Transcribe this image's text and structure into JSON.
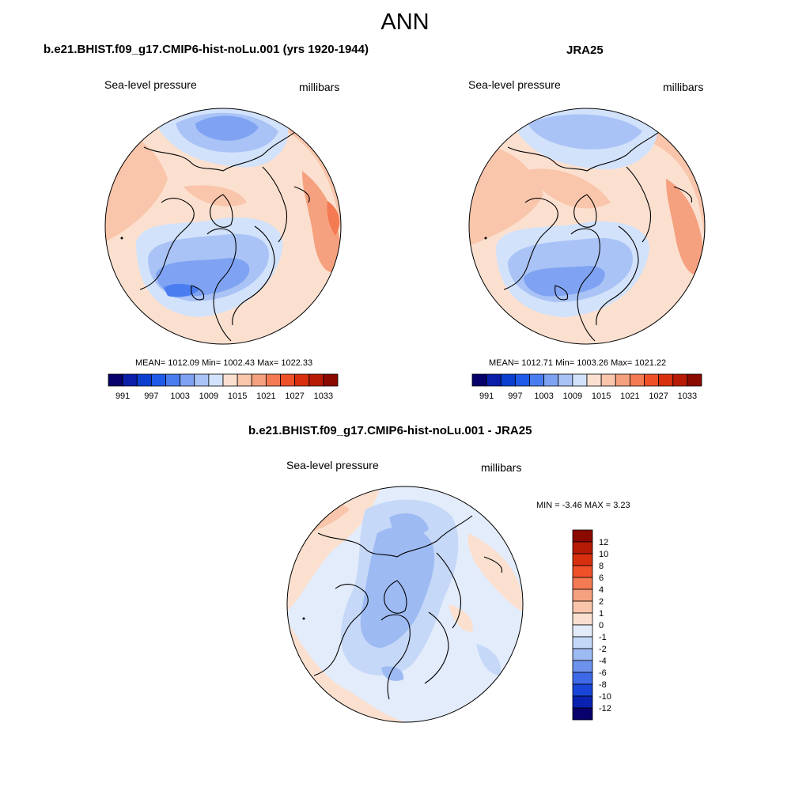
{
  "page": {
    "title": "ANN"
  },
  "panels": {
    "model": {
      "title": "b.e21.BHIST.f09_g17.CMIP6-hist-noLu.001 (yrs 1920-1944)",
      "variable": "Sea-level pressure",
      "units": "millibars",
      "stats": "MEAN= 1012.09  Min= 1002.43  Max= 1022.33",
      "mean": 1012.09,
      "min": 1002.43,
      "max": 1022.33
    },
    "obs": {
      "title": "JRA25",
      "variable": "Sea-level pressure",
      "units": "millibars",
      "stats": "MEAN= 1012.71  Min= 1003.26  Max= 1021.22",
      "mean": 1012.71,
      "min": 1003.26,
      "max": 1021.22
    },
    "diff": {
      "title": "b.e21.BHIST.f09_g17.CMIP6-hist-noLu.001 - JRA25",
      "variable": "Sea-level pressure",
      "units": "millibars",
      "stats": "MIN =  -3.46 MAX =   3.23",
      "min": -3.46,
      "max": 3.23
    }
  },
  "colorbars": {
    "absolute": {
      "labels": [
        "991",
        "997",
        "1003",
        "1009",
        "1015",
        "1021",
        "1027",
        "1033"
      ],
      "colors": [
        "#08006b",
        "#0a1ea8",
        "#0c3fd0",
        "#1f5ae8",
        "#4a7df0",
        "#7fa3f2",
        "#aac3f6",
        "#d2e2fb",
        "#fbe0d0",
        "#f9c5ab",
        "#f5a07e",
        "#f37a52",
        "#ee5028",
        "#d8300e",
        "#b81b05",
        "#8a0a00"
      ]
    },
    "difference": {
      "labels": [
        "12",
        "10",
        "8",
        "6",
        "4",
        "2",
        "1",
        "0",
        "-1",
        "-2",
        "-4",
        "-6",
        "-8",
        "-10",
        "-12"
      ],
      "colors": [
        "#8a0a00",
        "#b81b05",
        "#d8300e",
        "#ee5028",
        "#f37a52",
        "#f5a07e",
        "#f9c5ab",
        "#fbe0d0",
        "#e3ecfb",
        "#c6d8f8",
        "#9dbaf3",
        "#6d92ee",
        "#3e6ae8",
        "#1945d8",
        "#0a22b0",
        "#08006b"
      ]
    }
  }
}
